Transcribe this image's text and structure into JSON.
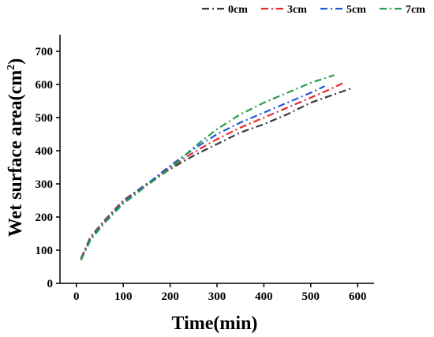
{
  "chart_data": {
    "type": "line",
    "xlabel": "Time(min)",
    "ylabel_main": "Wet surface area(cm",
    "ylabel_sup": "2",
    "ylabel_close": ")",
    "xlim": [
      -35,
      635
    ],
    "ylim": [
      0,
      750
    ],
    "x_ticks": [
      0,
      100,
      200,
      300,
      400,
      500,
      600
    ],
    "y_ticks": [
      0,
      100,
      200,
      300,
      400,
      500,
      600,
      700
    ],
    "x_tick_labels": [
      "0",
      "100",
      "200",
      "300",
      "400",
      "500",
      "600"
    ],
    "y_tick_labels": [
      "0",
      "100",
      "200",
      "300",
      "400",
      "500",
      "600",
      "700"
    ],
    "legend_position": "top-right",
    "grid": false,
    "series": [
      {
        "name": "0cm",
        "color": "#3a3a3a",
        "dash": "dash-dot",
        "x": [
          10,
          30,
          60,
          100,
          150,
          200,
          250,
          300,
          350,
          400,
          450,
          500,
          550,
          590
        ],
        "y": [
          75,
          140,
          190,
          250,
          300,
          345,
          385,
          420,
          455,
          480,
          510,
          545,
          570,
          590
        ]
      },
      {
        "name": "3cm",
        "color": "#e8282b",
        "dash": "dash-dot",
        "x": [
          10,
          30,
          60,
          100,
          150,
          200,
          250,
          300,
          350,
          400,
          450,
          500,
          540,
          570
        ],
        "y": [
          75,
          138,
          188,
          248,
          298,
          350,
          395,
          435,
          470,
          500,
          530,
          560,
          585,
          605
        ]
      },
      {
        "name": "5cm",
        "color": "#1f5bd6",
        "dash": "dash-dot",
        "x": [
          10,
          30,
          60,
          100,
          150,
          200,
          250,
          300,
          350,
          400,
          450,
          500,
          530
        ],
        "y": [
          72,
          135,
          185,
          245,
          298,
          355,
          405,
          450,
          485,
          515,
          545,
          575,
          595
        ]
      },
      {
        "name": "7cm",
        "color": "#2a9e4a",
        "dash": "dash-dot",
        "x": [
          10,
          30,
          60,
          100,
          150,
          200,
          250,
          300,
          350,
          400,
          450,
          500,
          550
        ],
        "y": [
          70,
          130,
          182,
          240,
          295,
          345,
          410,
          465,
          510,
          545,
          575,
          605,
          628
        ]
      }
    ]
  }
}
